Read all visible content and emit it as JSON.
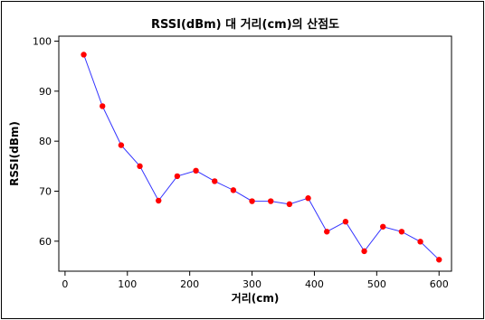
{
  "chart_data": {
    "type": "scatter",
    "title": "RSSI(dBm) 대 거리(cm)의 산점도",
    "xlabel": "거리(cm)",
    "ylabel": "RSSI(dBm)",
    "xlim": [
      -10,
      620
    ],
    "ylim": [
      54,
      101
    ],
    "xticks": [
      0,
      100,
      200,
      300,
      400,
      500,
      600
    ],
    "yticks": [
      60,
      70,
      80,
      90,
      100
    ],
    "connect_points": true,
    "grid": false,
    "series": [
      {
        "x": [
          30,
          60,
          90,
          120,
          150,
          180,
          210,
          240,
          270,
          300,
          330,
          360,
          390,
          420,
          450,
          480,
          510,
          540,
          570,
          600
        ],
        "y": [
          97.3,
          87.0,
          79.2,
          75.0,
          68.1,
          73.0,
          74.1,
          72.0,
          70.2,
          68.0,
          68.0,
          67.4,
          68.6,
          61.9,
          63.9,
          58.0,
          62.9,
          61.9,
          59.9,
          56.3
        ]
      }
    ],
    "colors": {
      "line": "#3333ff",
      "marker": "#ff0000",
      "axis": "#000000",
      "background": "#ffffff"
    }
  }
}
